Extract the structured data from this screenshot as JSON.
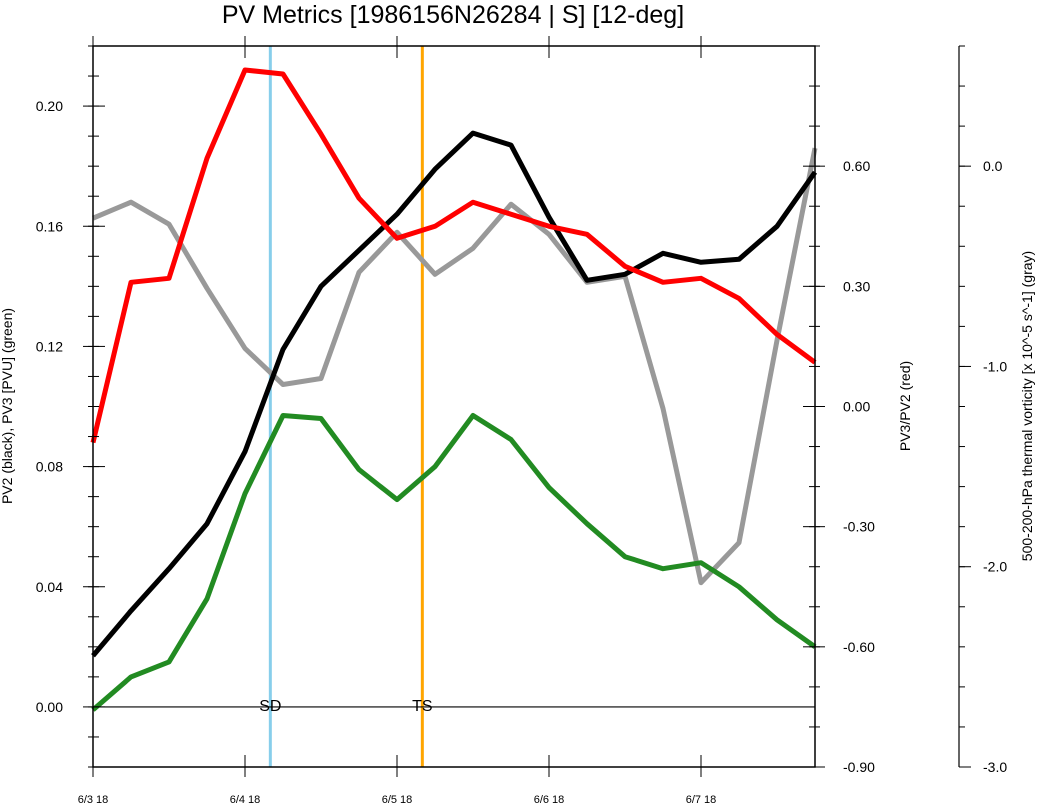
{
  "chart_data": {
    "type": "line",
    "title": "PV Metrics [1986156N26284 | S] [12-deg]",
    "x_tick_labels": [
      "6/3 18",
      "6/4 18",
      "6/5 18",
      "6/6 18",
      "6/7 18"
    ],
    "x_ticks_hours": [
      0,
      24,
      48,
      72,
      96
    ],
    "x_range_hours": [
      0,
      114
    ],
    "x_hours": [
      0,
      6,
      12,
      18,
      24,
      30,
      36,
      42,
      48,
      54,
      60,
      66,
      72,
      78,
      84,
      90,
      96,
      102,
      108,
      114
    ],
    "axes": {
      "left": {
        "label": "PV2 (black), PV3 [PVU] (green)",
        "range": [
          -0.02,
          0.22
        ],
        "ticks": [
          "0.00",
          "0.04",
          "0.08",
          "0.12",
          "0.16",
          "0.20"
        ],
        "tick_values": [
          0.0,
          0.04,
          0.08,
          0.12,
          0.16,
          0.2
        ]
      },
      "right1": {
        "label": "PV3/PV2 (red)",
        "range": [
          -0.9,
          0.9
        ],
        "ticks": [
          "-0.90",
          "-0.60",
          "-0.30",
          "0.00",
          "0.30",
          "0.60"
        ],
        "tick_values": [
          -0.9,
          -0.6,
          -0.3,
          0.0,
          0.3,
          0.6
        ]
      },
      "right2": {
        "label": "500-200-hPa thermal vorticity [x 10^-5 s^-1] (gray)",
        "range": [
          -3.0,
          0.6
        ],
        "ticks": [
          "-3.0",
          "-2.0",
          "-1.0",
          "0.0"
        ],
        "tick_values": [
          -3.0,
          -2.0,
          -1.0,
          0.0
        ]
      }
    },
    "series": [
      {
        "name": "PV2",
        "axis": "left",
        "color": "#000000",
        "values": [
          0.017,
          0.032,
          0.046,
          0.061,
          0.085,
          0.119,
          0.14,
          0.152,
          0.164,
          0.179,
          0.191,
          0.187,
          0.163,
          0.142,
          0.144,
          0.151,
          0.148,
          0.149,
          0.16,
          0.178
        ]
      },
      {
        "name": "PV3",
        "axis": "left",
        "color": "#228B22",
        "values": [
          -0.001,
          0.01,
          0.015,
          0.036,
          0.071,
          0.097,
          0.096,
          0.079,
          0.069,
          0.08,
          0.097,
          0.089,
          0.073,
          0.061,
          0.05,
          0.046,
          0.048,
          0.04,
          0.029,
          0.02
        ]
      },
      {
        "name": "PV3/PV2",
        "axis": "right1",
        "color": "#FF0000",
        "values": [
          -0.09,
          0.31,
          0.32,
          0.62,
          0.84,
          0.83,
          0.68,
          0.52,
          0.42,
          0.45,
          0.51,
          0.48,
          0.45,
          0.43,
          0.35,
          0.31,
          0.32,
          0.27,
          0.18,
          0.11
        ]
      },
      {
        "name": "500-200-hPa thermal vorticity",
        "axis": "right2",
        "color": "#999999",
        "values": [
          -0.26,
          -0.18,
          -0.29,
          -0.61,
          -0.91,
          -1.09,
          -1.06,
          -0.53,
          -0.33,
          -0.54,
          -0.41,
          -0.19,
          -0.34,
          -0.58,
          -0.55,
          -1.21,
          -2.08,
          -1.88,
          -0.87,
          0.09
        ]
      }
    ],
    "reference_lines": [
      {
        "label": "SD",
        "x_hours": 28,
        "color": "#87CEEB"
      },
      {
        "label": "TS",
        "x_hours": 52,
        "color": "#FFA500"
      }
    ],
    "zero_line_left_axis": 0.0,
    "grid": false
  }
}
